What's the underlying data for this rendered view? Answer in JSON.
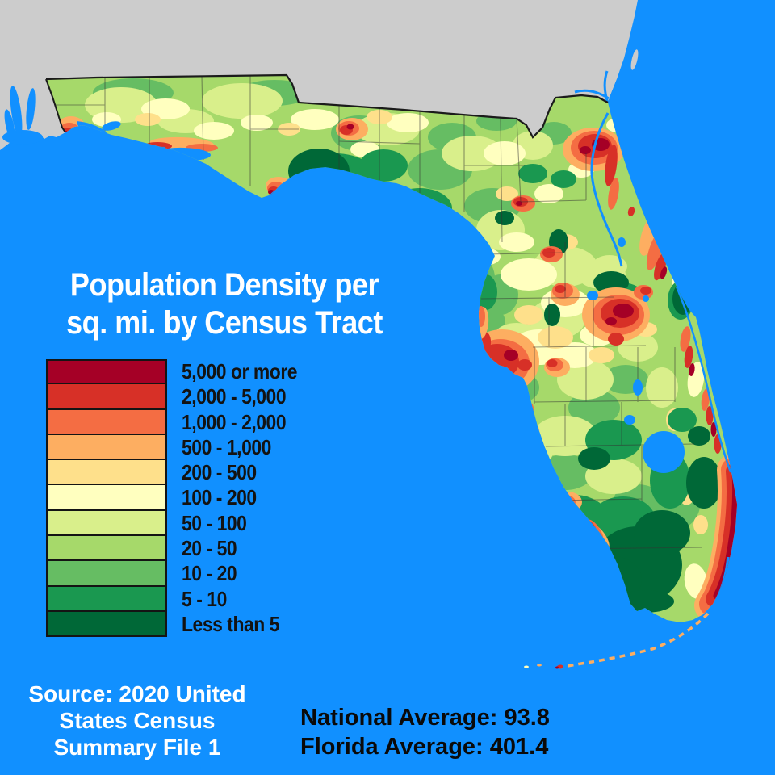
{
  "map": {
    "region": "Florida",
    "title_lines": [
      "Population Density per",
      "sq. mi. by Census Tract"
    ],
    "water_color": "#1190ff",
    "neighbor_land_color": "#cccccc",
    "base_color": "#A6D96A",
    "state_border_color": "#1b1b1b"
  },
  "legend": {
    "items": [
      {
        "label": "5,000 or more",
        "color": "#A50026"
      },
      {
        "label": "2,000 - 5,000",
        "color": "#D73027"
      },
      {
        "label": "1,000 - 2,000",
        "color": "#F46D43"
      },
      {
        "label": "500 - 1,000",
        "color": "#FDAE61"
      },
      {
        "label": "200 - 500",
        "color": "#FEE08B"
      },
      {
        "label": "100 - 200",
        "color": "#FFFFBF"
      },
      {
        "label": "50 - 100",
        "color": "#D9EF8B"
      },
      {
        "label": "20 - 50",
        "color": "#A6D96A"
      },
      {
        "label": "10 - 20",
        "color": "#66BD63"
      },
      {
        "label": "5 - 10",
        "color": "#1A9850"
      },
      {
        "label": "Less than 5",
        "color": "#006837"
      }
    ]
  },
  "source": {
    "lines": [
      "Source: 2020 United",
      "States Census",
      "Summary File 1"
    ]
  },
  "stats": {
    "national": "National Average: 93.8",
    "florida": "Florida Average: 401.4"
  }
}
